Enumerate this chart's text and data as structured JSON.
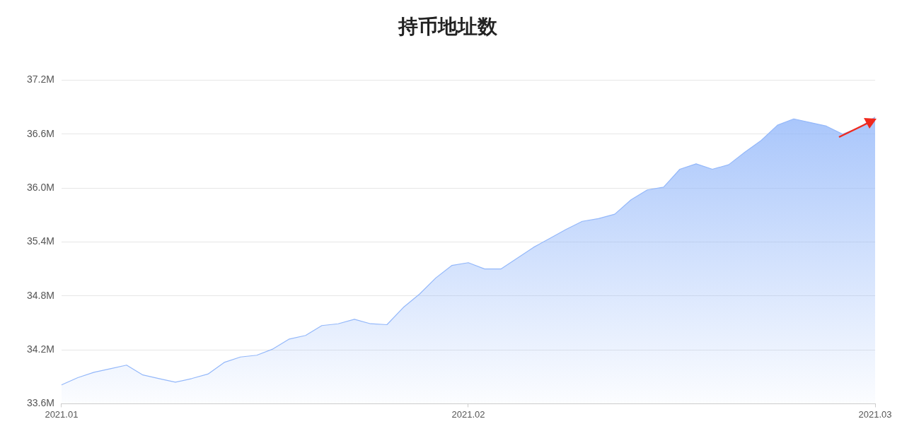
{
  "chart_data": {
    "type": "area",
    "title": "持币地址数",
    "categories": [
      "2021.01",
      null,
      null,
      null,
      null,
      null,
      null,
      null,
      null,
      null,
      null,
      null,
      null,
      null,
      null,
      null,
      null,
      null,
      null,
      null,
      null,
      null,
      null,
      null,
      null,
      "2021.02",
      null,
      null,
      null,
      null,
      null,
      null,
      null,
      null,
      null,
      null,
      null,
      null,
      null,
      null,
      null,
      null,
      null,
      null,
      null,
      null,
      null,
      null,
      null,
      null,
      "2021.03"
    ],
    "series": [
      {
        "color": "#94b8fa",
        "values": [
          33.81,
          33.89,
          33.95,
          33.99,
          34.03,
          33.92,
          33.88,
          33.84,
          33.88,
          33.93,
          34.06,
          34.12,
          34.14,
          34.21,
          34.32,
          34.36,
          34.47,
          34.49,
          34.54,
          34.49,
          34.48,
          34.67,
          34.82,
          35.0,
          35.14,
          35.17,
          35.1,
          35.1,
          35.22,
          35.34,
          35.44,
          35.54,
          35.63,
          35.66,
          35.71,
          35.87,
          35.98,
          36.01,
          36.21,
          36.27,
          36.21,
          36.26,
          36.4,
          36.53,
          36.7,
          36.77,
          36.73,
          36.69,
          36.6,
          36.67,
          36.79
        ]
      }
    ],
    "ylim": [
      33.6,
      37.2
    ],
    "yticks": [
      {
        "value": 33.6,
        "label": "33.6M"
      },
      {
        "value": 34.2,
        "label": "34.2M"
      },
      {
        "value": 34.8,
        "label": "34.8M"
      },
      {
        "value": 35.4,
        "label": "35.4M"
      },
      {
        "value": 36.0,
        "label": "36.0M"
      },
      {
        "value": 36.6,
        "label": "36.6M"
      },
      {
        "value": 37.2,
        "label": "37.2M"
      }
    ],
    "grid": "y",
    "legend": false,
    "marker": "none",
    "line_style": "solid"
  }
}
